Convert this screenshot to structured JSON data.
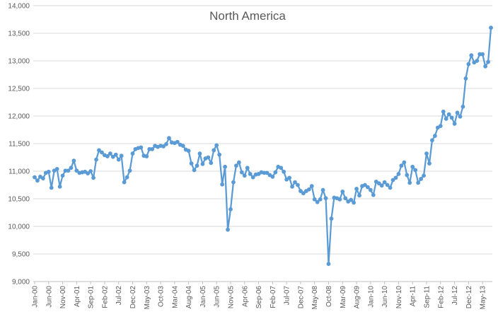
{
  "chart_data": {
    "type": "line",
    "title": "North America",
    "xlabel": "",
    "ylabel": "",
    "ylim": [
      9000,
      14000
    ],
    "yticks": [
      "9,000",
      "9,500",
      "10,000",
      "10,500",
      "11,000",
      "11,500",
      "12,000",
      "12,500",
      "13,000",
      "13,500",
      "14,000"
    ],
    "x_tick_labels": [
      "Jan-00",
      "Jun-00",
      "Nov-00",
      "Apr-01",
      "Sep-01",
      "Feb-02",
      "Jul-02",
      "Dec-02",
      "May-03",
      "Oct-03",
      "Mar-04",
      "Aug-04",
      "Jan-05",
      "Jun-05",
      "Nov-05",
      "Apr-06",
      "Sep-06",
      "Feb-07",
      "Jul-07",
      "Dec-07",
      "May-08",
      "Oct-08",
      "Mar-09",
      "Aug-09",
      "Jan-10",
      "Jun-10",
      "Nov-10",
      "Apr-11",
      "Sep-11",
      "Feb-12",
      "Jul-12",
      "Dec-12",
      "May-13"
    ],
    "x_start": "Jan-00",
    "x_interval": "monthly",
    "grid": true,
    "line_color": "#5b9bd5",
    "values": [
      10890,
      10830,
      10900,
      10870,
      10970,
      10990,
      10700,
      11010,
      11040,
      10720,
      10920,
      11010,
      11010,
      11060,
      11190,
      11010,
      10970,
      10980,
      10990,
      10960,
      11000,
      10880,
      11210,
      11380,
      11340,
      11290,
      11270,
      11320,
      11260,
      11300,
      11210,
      11280,
      10800,
      10890,
      11010,
      11320,
      11400,
      11420,
      11430,
      11280,
      11270,
      11400,
      11400,
      11460,
      11440,
      11460,
      11450,
      11490,
      11600,
      11520,
      11510,
      11530,
      11480,
      11460,
      11390,
      11370,
      11140,
      11020,
      11100,
      11320,
      11130,
      11230,
      11250,
      11150,
      11380,
      11470,
      11300,
      10760,
      11080,
      9940,
      10310,
      10800,
      11100,
      11160,
      10980,
      10920,
      11060,
      10950,
      10890,
      10940,
      10950,
      10980,
      10970,
      10970,
      10930,
      10900,
      10980,
      11080,
      11060,
      10990,
      10850,
      10880,
      10720,
      10800,
      10750,
      10640,
      10600,
      10640,
      10670,
      10730,
      10490,
      10440,
      10490,
      10660,
      10510,
      9320,
      10140,
      10520,
      10510,
      10490,
      10630,
      10510,
      10450,
      10480,
      10430,
      10680,
      10560,
      10730,
      10750,
      10710,
      10660,
      10570,
      10810,
      10780,
      10740,
      10800,
      10750,
      10700,
      10840,
      10880,
      10950,
      11100,
      11160,
      10930,
      10790,
      11080,
      11020,
      10790,
      10860,
      10920,
      11320,
      11140,
      11560,
      11640,
      11790,
      11820,
      12080,
      11950,
      12030,
      11970,
      11860,
      12060,
      11990,
      12170,
      12680,
      12940,
      13100,
      12970,
      13000,
      13120,
      13120,
      12900,
      12980,
      13600
    ]
  }
}
